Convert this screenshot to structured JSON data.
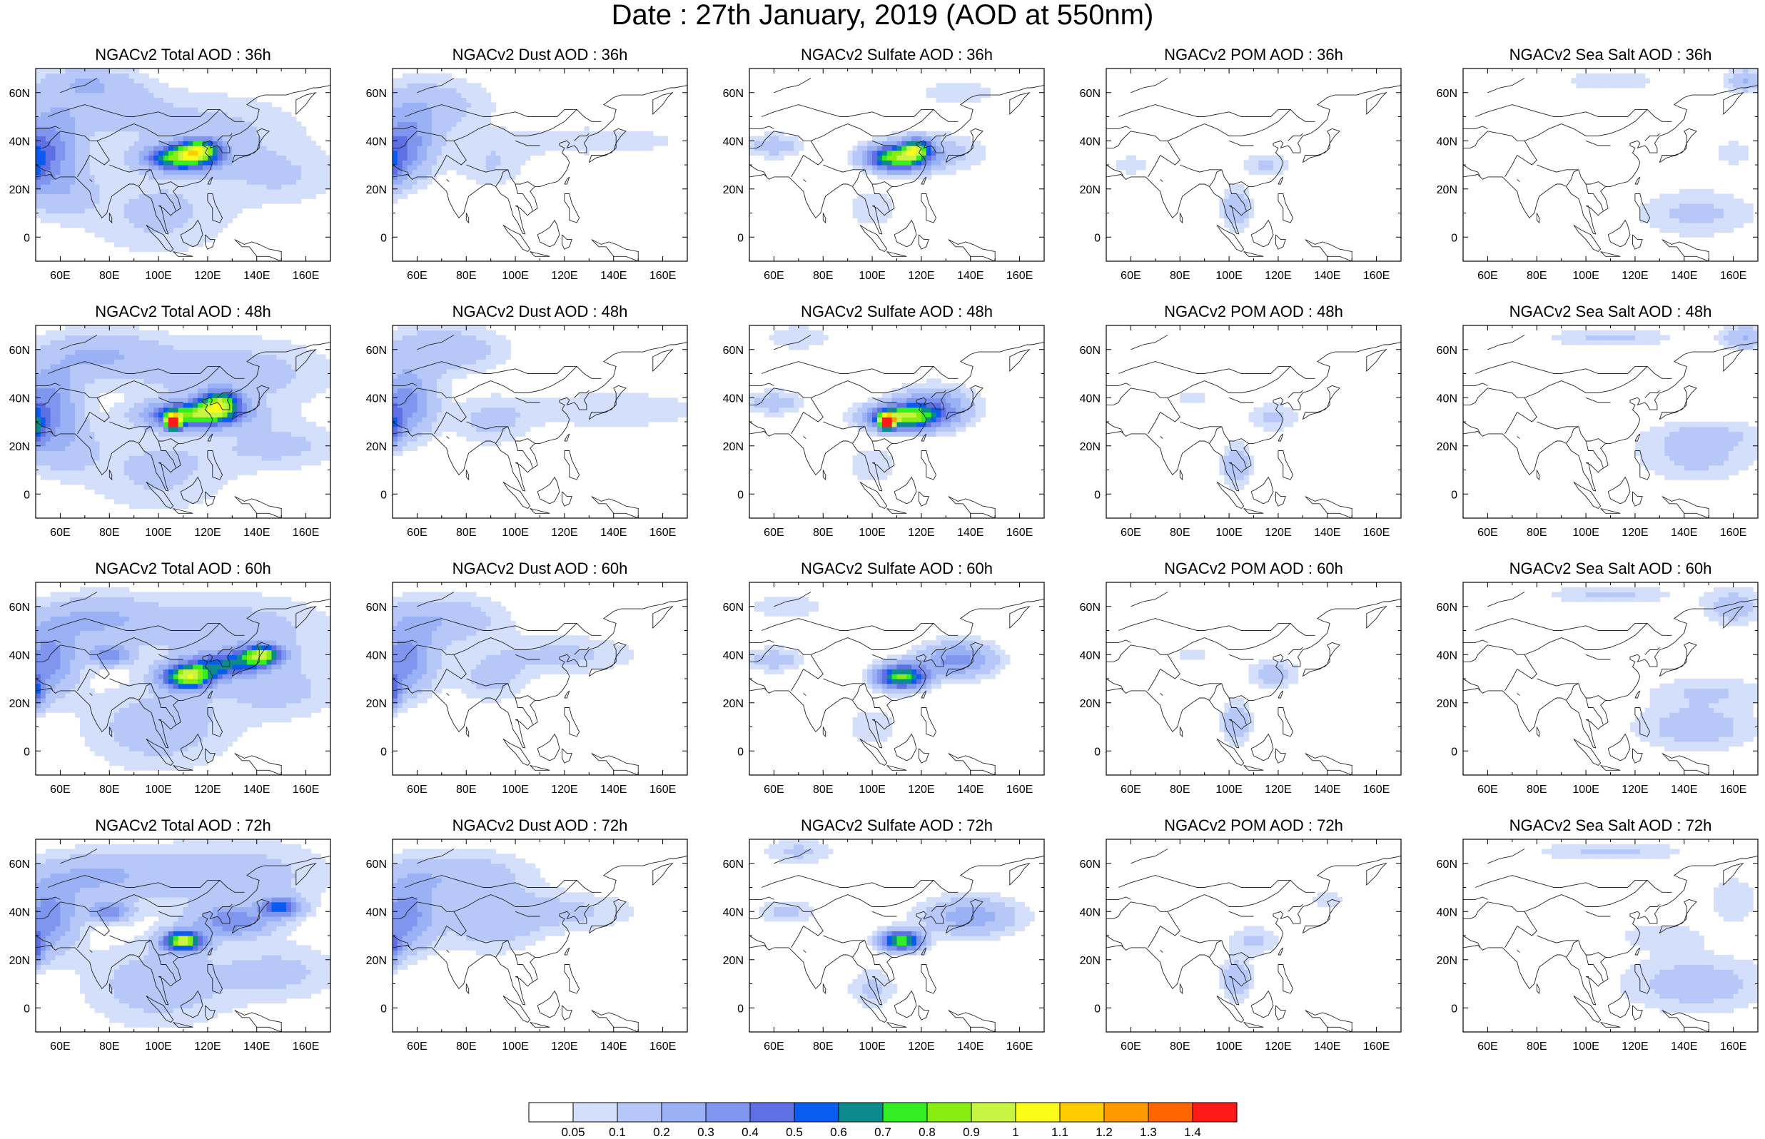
{
  "title": "Date : 27th January, 2019 (AOD at 550nm)",
  "axes": {
    "lon_ticks": [
      "60E",
      "80E",
      "100E",
      "120E",
      "140E",
      "160E"
    ],
    "lat_ticks": [
      "60N",
      "40N",
      "20N",
      "0"
    ]
  },
  "panels": [
    [
      {
        "title": "NGACv2 Total AOD : 36h"
      },
      {
        "title": "NGACv2 Dust AOD : 36h"
      },
      {
        "title": "NGACv2 Sulfate AOD : 36h"
      },
      {
        "title": "NGACv2 POM AOD : 36h"
      },
      {
        "title": "NGACv2 Sea Salt AOD : 36h"
      }
    ],
    [
      {
        "title": "NGACv2 Total AOD : 48h"
      },
      {
        "title": "NGACv2 Dust AOD : 48h"
      },
      {
        "title": "NGACv2 Sulfate AOD : 48h"
      },
      {
        "title": "NGACv2 POM AOD : 48h"
      },
      {
        "title": "NGACv2 Sea Salt AOD : 48h"
      }
    ],
    [
      {
        "title": "NGACv2 Total AOD : 60h"
      },
      {
        "title": "NGACv2 Dust AOD : 60h"
      },
      {
        "title": "NGACv2 Sulfate AOD : 60h"
      },
      {
        "title": "NGACv2 POM AOD : 60h"
      },
      {
        "title": "NGACv2 Sea Salt AOD : 60h"
      }
    ],
    [
      {
        "title": "NGACv2 Total AOD : 72h"
      },
      {
        "title": "NGACv2 Dust AOD : 72h"
      },
      {
        "title": "NGACv2 Sulfate AOD : 72h"
      },
      {
        "title": "NGACv2 POM AOD : 72h"
      },
      {
        "title": "NGACv2 Sea Salt  AOD : 72h"
      }
    ]
  ],
  "colorbar": {
    "labels": [
      "0.05",
      "0.1",
      "0.2",
      "0.3",
      "0.4",
      "0.5",
      "0.6",
      "0.7",
      "0.8",
      "0.9",
      "1",
      "1.1",
      "1.2",
      "1.3",
      "1.4"
    ],
    "colors": [
      "#ffffff",
      "#d4dffc",
      "#b7c8f8",
      "#9ab2f5",
      "#7f95ee",
      "#5f6fe4",
      "#0a5cf0",
      "#0d8a8c",
      "#33ee22",
      "#88ee11",
      "#c8f542",
      "#fbfb1a",
      "#ffcc00",
      "#ff9900",
      "#ff6600",
      "#ff1a1a"
    ]
  },
  "chart_data": {
    "type": "heatmap",
    "title": "Date : 27th January, 2019 (AOD at 550nm)",
    "xlim": [
      50,
      170
    ],
    "ylim": [
      -10,
      70
    ],
    "x_ticks": [
      60,
      80,
      100,
      120,
      140,
      160
    ],
    "y_ticks": [
      0,
      20,
      40,
      60
    ],
    "forecast_hours": [
      36,
      48,
      60,
      72
    ],
    "species": [
      "Total",
      "Dust",
      "Sulfate",
      "POM",
      "Sea Salt"
    ],
    "colorbar_levels": [
      0.05,
      0.1,
      0.2,
      0.3,
      0.4,
      0.5,
      0.6,
      0.7,
      0.8,
      0.9,
      1,
      1.1,
      1.2,
      1.3,
      1.4
    ],
    "maps": {
      "Total": [
        {
          "hour": 36,
          "blobs": [
            [
              55,
              38,
              12,
              14,
              0.35
            ],
            [
              45,
              30,
              8,
              10,
              0.5
            ],
            [
              110,
              33,
              14,
              5,
              0.8
            ],
            [
              117,
              37,
              8,
              4,
              0.6
            ],
            [
              75,
              55,
              25,
              10,
              0.15
            ],
            [
              120,
              45,
              40,
              15,
              0.12
            ],
            [
              100,
              10,
              30,
              18,
              0.12
            ],
            [
              150,
              25,
              25,
              12,
              0.1
            ],
            [
              60,
              20,
              15,
              12,
              0.15
            ],
            [
              70,
              65,
              20,
              6,
              0.15
            ]
          ]
        },
        {
          "hour": 48,
          "blobs": [
            [
              55,
              38,
              12,
              14,
              0.35
            ],
            [
              47,
              28,
              6,
              8,
              0.6
            ],
            [
              115,
              33,
              18,
              5,
              0.8
            ],
            [
              106,
              30,
              3,
              3,
              1.3
            ],
            [
              125,
              38,
              8,
              5,
              0.7
            ],
            [
              75,
              58,
              25,
              10,
              0.2
            ],
            [
              130,
              50,
              40,
              15,
              0.15
            ],
            [
              100,
              10,
              30,
              18,
              0.12
            ],
            [
              150,
              20,
              25,
              10,
              0.12
            ],
            [
              60,
              20,
              15,
              12,
              0.15
            ]
          ]
        },
        {
          "hour": 60,
          "blobs": [
            [
              55,
              38,
              12,
              14,
              0.35
            ],
            [
              48,
              25,
              5,
              7,
              0.55
            ],
            [
              112,
              31,
              10,
              5,
              0.9
            ],
            [
              142,
              40,
              8,
              4,
              0.8
            ],
            [
              128,
              36,
              14,
              5,
              0.5
            ],
            [
              75,
              55,
              25,
              10,
              0.2
            ],
            [
              130,
              50,
              40,
              15,
              0.15
            ],
            [
              100,
              10,
              30,
              18,
              0.15
            ],
            [
              150,
              25,
              25,
              12,
              0.12
            ],
            [
              80,
              40,
              8,
              4,
              0.35
            ]
          ]
        },
        {
          "hour": 72,
          "blobs": [
            [
              55,
              38,
              12,
              14,
              0.35
            ],
            [
              48,
              25,
              5,
              7,
              0.5
            ],
            [
              110,
              28,
              8,
              4,
              0.9
            ],
            [
              150,
              42,
              8,
              4,
              0.5
            ],
            [
              130,
              36,
              16,
              6,
              0.35
            ],
            [
              75,
              55,
              25,
              10,
              0.2
            ],
            [
              130,
              55,
              40,
              15,
              0.15
            ],
            [
              100,
              10,
              30,
              18,
              0.15
            ],
            [
              150,
              15,
              25,
              12,
              0.12
            ],
            [
              80,
              40,
              8,
              4,
              0.35
            ]
          ]
        }
      ],
      "Dust": [
        {
          "hour": 36,
          "blobs": [
            [
              55,
              38,
              12,
              14,
              0.35
            ],
            [
              45,
              30,
              8,
              10,
              0.5
            ],
            [
              65,
              55,
              25,
              12,
              0.15
            ],
            [
              130,
              40,
              40,
              6,
              0.1
            ],
            [
              90,
              30,
              15,
              10,
              0.1
            ]
          ]
        },
        {
          "hour": 48,
          "blobs": [
            [
              55,
              38,
              12,
              14,
              0.35
            ],
            [
              47,
              28,
              6,
              8,
              0.5
            ],
            [
              70,
              60,
              25,
              10,
              0.18
            ],
            [
              140,
              35,
              40,
              8,
              0.1
            ],
            [
              90,
              30,
              15,
              10,
              0.12
            ]
          ]
        },
        {
          "hour": 60,
          "blobs": [
            [
              55,
              38,
              12,
              14,
              0.35
            ],
            [
              48,
              25,
              5,
              7,
              0.5
            ],
            [
              70,
              55,
              25,
              10,
              0.18
            ],
            [
              120,
              40,
              30,
              8,
              0.12
            ],
            [
              90,
              30,
              15,
              10,
              0.12
            ]
          ]
        },
        {
          "hour": 72,
          "blobs": [
            [
              55,
              38,
              12,
              14,
              0.35
            ],
            [
              48,
              25,
              5,
              7,
              0.45
            ],
            [
              75,
              55,
              30,
              10,
              0.18
            ],
            [
              120,
              40,
              30,
              8,
              0.12
            ],
            [
              90,
              35,
              20,
              12,
              0.15
            ]
          ]
        }
      ],
      "Sulfate": [
        {
          "hour": 36,
          "blobs": [
            [
              110,
              33,
              12,
              5,
              0.8
            ],
            [
              118,
              37,
              6,
              4,
              0.6
            ],
            [
              125,
              35,
              20,
              8,
              0.15
            ],
            [
              60,
              38,
              12,
              5,
              0.15
            ],
            [
              100,
              12,
              10,
              8,
              0.1
            ],
            [
              135,
              60,
              15,
              5,
              0.1
            ]
          ]
        },
        {
          "hour": 48,
          "blobs": [
            [
              112,
              32,
              14,
              5,
              0.8
            ],
            [
              106,
              30,
              3,
              3,
              1.2
            ],
            [
              125,
              36,
              15,
              8,
              0.35
            ],
            [
              60,
              38,
              12,
              5,
              0.15
            ],
            [
              100,
              12,
              10,
              8,
              0.1
            ],
            [
              70,
              65,
              15,
              5,
              0.1
            ]
          ]
        },
        {
          "hour": 60,
          "blobs": [
            [
              112,
              31,
              10,
              5,
              0.8
            ],
            [
              135,
              38,
              15,
              7,
              0.35
            ],
            [
              60,
              38,
              12,
              5,
              0.15
            ],
            [
              100,
              10,
              10,
              8,
              0.1
            ],
            [
              65,
              60,
              15,
              5,
              0.1
            ]
          ]
        },
        {
          "hour": 72,
          "blobs": [
            [
              112,
              28,
              8,
              4,
              0.8
            ],
            [
              140,
              38,
              20,
              8,
              0.25
            ],
            [
              65,
              40,
              12,
              5,
              0.12
            ],
            [
              100,
              8,
              10,
              8,
              0.12
            ],
            [
              70,
              65,
              15,
              5,
              0.12
            ]
          ]
        }
      ],
      "POM": [
        {
          "hour": 36,
          "blobs": [
            [
              103,
              12,
              6,
              8,
              0.2
            ],
            [
              115,
              30,
              10,
              5,
              0.12
            ],
            [
              60,
              30,
              8,
              5,
              0.08
            ]
          ]
        },
        {
          "hour": 48,
          "blobs": [
            [
              103,
              12,
              6,
              8,
              0.2
            ],
            [
              118,
              32,
              10,
              6,
              0.12
            ],
            [
              85,
              40,
              8,
              4,
              0.08
            ]
          ]
        },
        {
          "hour": 60,
          "blobs": [
            [
              103,
              12,
              6,
              8,
              0.2
            ],
            [
              118,
              32,
              10,
              6,
              0.15
            ],
            [
              85,
              40,
              8,
              4,
              0.08
            ]
          ]
        },
        {
          "hour": 72,
          "blobs": [
            [
              103,
              12,
              6,
              8,
              0.2
            ],
            [
              110,
              28,
              10,
              6,
              0.12
            ],
            [
              140,
              45,
              8,
              4,
              0.08
            ]
          ]
        }
      ],
      "Sea Salt": [
        {
          "hour": 36,
          "blobs": [
            [
              165,
              65,
              8,
              5,
              0.2
            ],
            [
              110,
              65,
              20,
              4,
              0.1
            ],
            [
              145,
              10,
              25,
              10,
              0.12
            ],
            [
              160,
              35,
              8,
              5,
              0.1
            ]
          ]
        },
        {
          "hour": 48,
          "blobs": [
            [
              165,
              65,
              10,
              5,
              0.2
            ],
            [
              110,
              65,
              25,
              4,
              0.12
            ],
            [
              145,
              15,
              25,
              10,
              0.12
            ],
            [
              150,
              25,
              25,
              6,
              0.1
            ]
          ]
        },
        {
          "hour": 60,
          "blobs": [
            [
              160,
              60,
              12,
              8,
              0.15
            ],
            [
              110,
              65,
              25,
              4,
              0.12
            ],
            [
              145,
              10,
              25,
              10,
              0.15
            ],
            [
              150,
              25,
              25,
              6,
              0.1
            ]
          ]
        },
        {
          "hour": 72,
          "blobs": [
            [
              110,
              65,
              30,
              4,
              0.12
            ],
            [
              145,
              10,
              30,
              12,
              0.15
            ],
            [
              160,
              45,
              10,
              10,
              0.1
            ],
            [
              130,
              30,
              20,
              6,
              0.08
            ]
          ]
        }
      ]
    }
  }
}
